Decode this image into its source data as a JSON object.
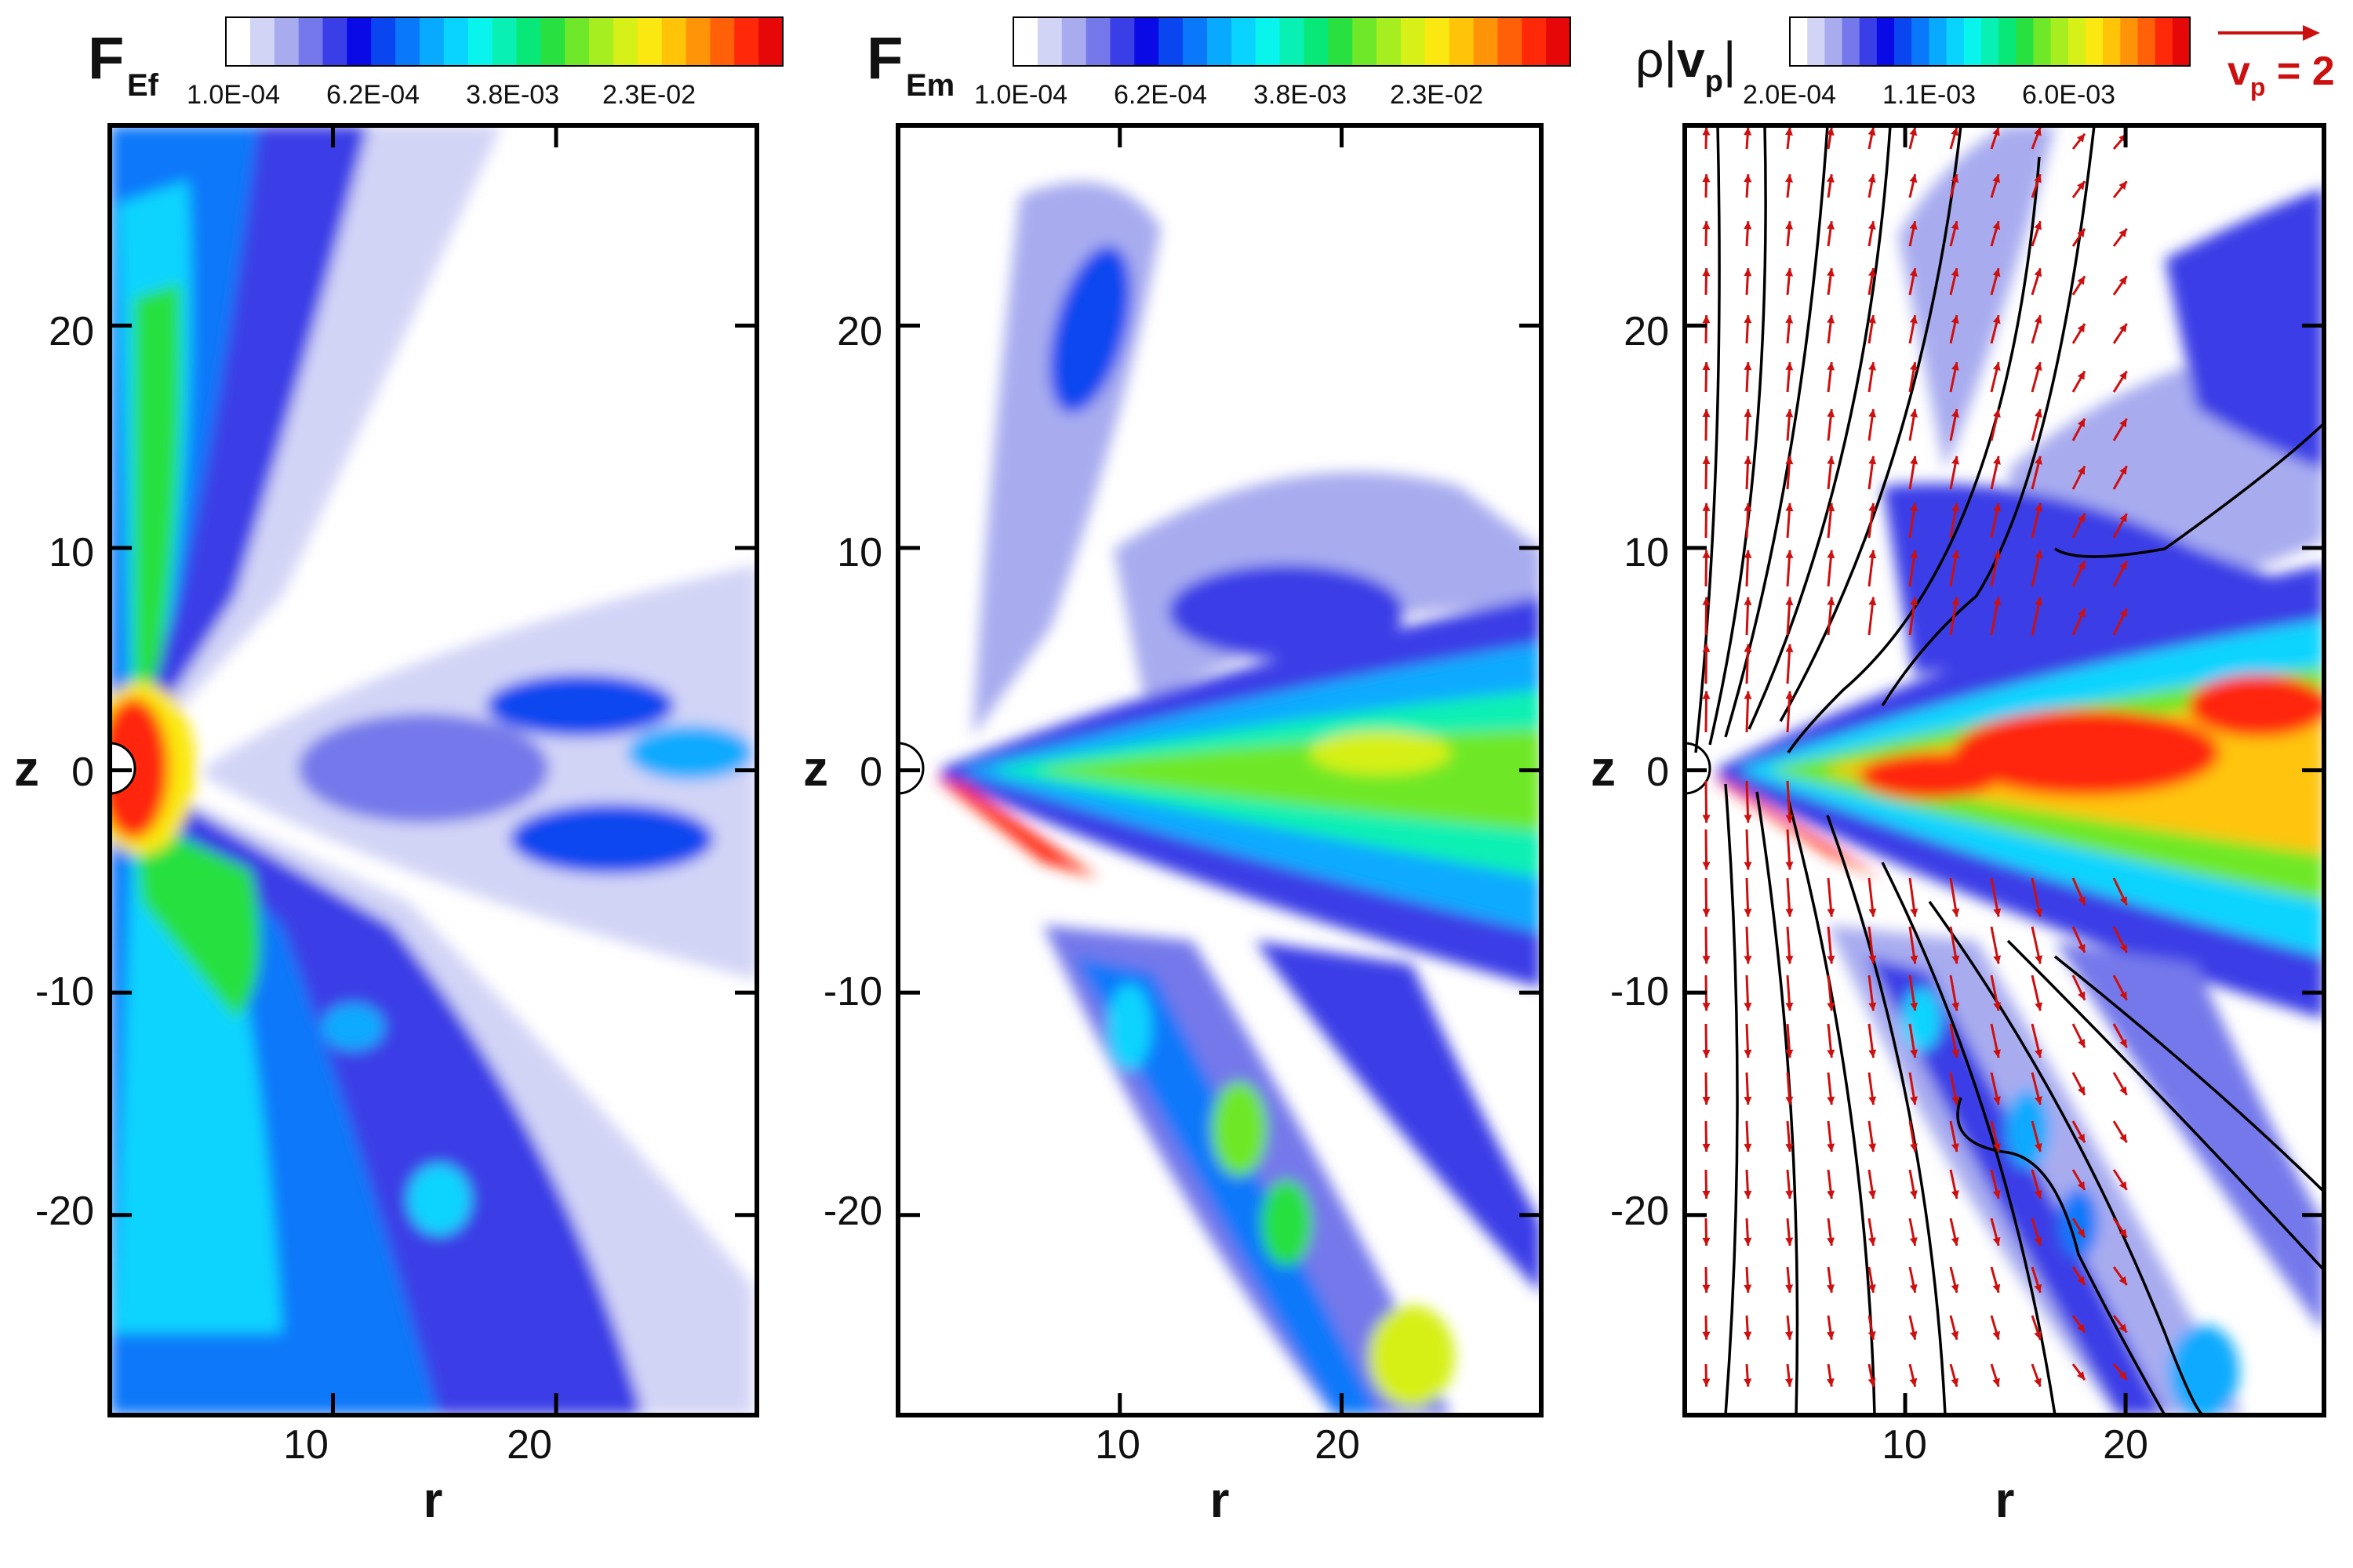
{
  "chart_data": [
    {
      "type": "heatmap",
      "title_symbol": "F",
      "title_subscript": "Ef",
      "xlabel": "r",
      "ylabel": "z",
      "xlim": [
        0,
        29
      ],
      "ylim": [
        -29,
        29
      ],
      "x_ticks": [
        10,
        20
      ],
      "y_ticks": [
        20,
        10,
        0,
        -10,
        -20
      ],
      "colorbar_labels": [
        "1.0E-04",
        "6.2E-04",
        "3.8E-03",
        "2.3E-02"
      ],
      "colorbar_scale": "log"
    },
    {
      "type": "heatmap",
      "title_symbol": "F",
      "title_subscript": "Em",
      "xlabel": "r",
      "ylabel": "z",
      "xlim": [
        0,
        29
      ],
      "ylim": [
        -29,
        29
      ],
      "x_ticks": [
        10,
        20
      ],
      "y_ticks": [
        20,
        10,
        0,
        -10,
        -20
      ],
      "colorbar_labels": [
        "1.0E-04",
        "6.2E-04",
        "3.8E-03",
        "2.3E-02"
      ],
      "colorbar_scale": "log"
    },
    {
      "type": "heatmap",
      "title_symbol": "ρ|",
      "title_bold": "v",
      "title_subscript": "p",
      "title_end": "|",
      "xlabel": "r",
      "ylabel": "z",
      "xlim": [
        0,
        29
      ],
      "ylim": [
        -29,
        29
      ],
      "x_ticks": [
        10,
        20
      ],
      "y_ticks": [
        20,
        10,
        0,
        -10,
        -20
      ],
      "colorbar_labels": [
        "2.0E-04",
        "1.1E-03",
        "6.0E-03"
      ],
      "colorbar_scale": "log",
      "overlays": [
        "velocity-vectors",
        "field-lines"
      ],
      "vector_legend": {
        "symbol": "v",
        "subscript": "p",
        "text": " = 2"
      }
    }
  ],
  "colors": {
    "palette": [
      "#ffffff",
      "#d2d4f6",
      "#a8acef",
      "#7478ea",
      "#3a3ee6",
      "#0a0ae6",
      "#0a46f0",
      "#0a78fa",
      "#08aaff",
      "#08d4ff",
      "#08f4ec",
      "#08f0b4",
      "#08e878",
      "#28e040",
      "#6ee828",
      "#a6ee20",
      "#d6f018",
      "#fae810",
      "#ffc408",
      "#ff9408",
      "#ff6008",
      "#ff2808",
      "#e60808"
    ],
    "vectors": "#cc1010",
    "field_lines": "#000000",
    "axis": "#000000"
  }
}
